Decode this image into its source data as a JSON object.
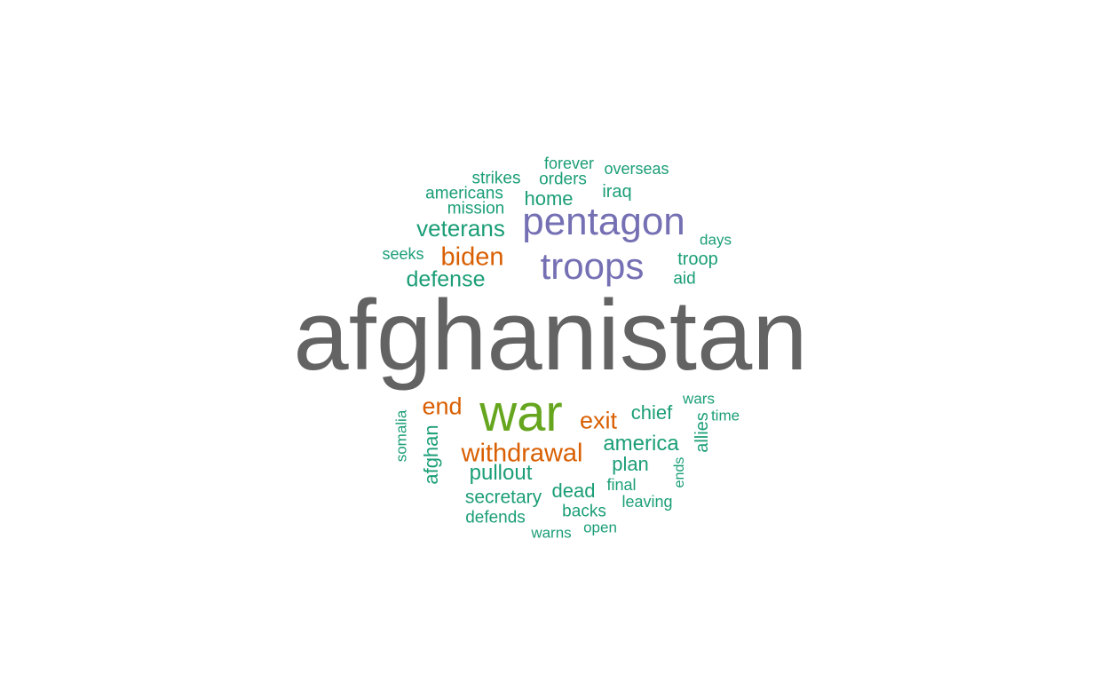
{
  "palette": {
    "gray": "#636363",
    "green": "#66a61e",
    "purple": "#7570b3",
    "orange": "#d95f02",
    "teal": "#1b9e77"
  },
  "words": [
    {
      "text": "afghanistan",
      "color": "gray"
    },
    {
      "text": "war",
      "color": "green"
    },
    {
      "text": "pentagon",
      "color": "purple"
    },
    {
      "text": "troops",
      "color": "purple"
    },
    {
      "text": "biden",
      "color": "orange"
    },
    {
      "text": "end",
      "color": "orange"
    },
    {
      "text": "exit",
      "color": "orange"
    },
    {
      "text": "withdrawal",
      "color": "orange"
    },
    {
      "text": "forever",
      "color": "teal"
    },
    {
      "text": "overseas",
      "color": "teal"
    },
    {
      "text": "strikes",
      "color": "teal"
    },
    {
      "text": "orders",
      "color": "teal"
    },
    {
      "text": "americans",
      "color": "teal"
    },
    {
      "text": "home",
      "color": "teal"
    },
    {
      "text": "iraq",
      "color": "teal"
    },
    {
      "text": "mission",
      "color": "teal"
    },
    {
      "text": "veterans",
      "color": "teal"
    },
    {
      "text": "days",
      "color": "teal"
    },
    {
      "text": "seeks",
      "color": "teal"
    },
    {
      "text": "troop",
      "color": "teal"
    },
    {
      "text": "defense",
      "color": "teal"
    },
    {
      "text": "aid",
      "color": "teal"
    },
    {
      "text": "wars",
      "color": "teal"
    },
    {
      "text": "chief",
      "color": "teal"
    },
    {
      "text": "time",
      "color": "teal"
    },
    {
      "text": "somalia",
      "color": "teal"
    },
    {
      "text": "allies",
      "color": "teal"
    },
    {
      "text": "america",
      "color": "teal"
    },
    {
      "text": "afghan",
      "color": "teal"
    },
    {
      "text": "plan",
      "color": "teal"
    },
    {
      "text": "ends",
      "color": "teal"
    },
    {
      "text": "pullout",
      "color": "teal"
    },
    {
      "text": "final",
      "color": "teal"
    },
    {
      "text": "dead",
      "color": "teal"
    },
    {
      "text": "secretary",
      "color": "teal"
    },
    {
      "text": "leaving",
      "color": "teal"
    },
    {
      "text": "backs",
      "color": "teal"
    },
    {
      "text": "defends",
      "color": "teal"
    },
    {
      "text": "open",
      "color": "teal"
    },
    {
      "text": "warns",
      "color": "teal"
    }
  ]
}
